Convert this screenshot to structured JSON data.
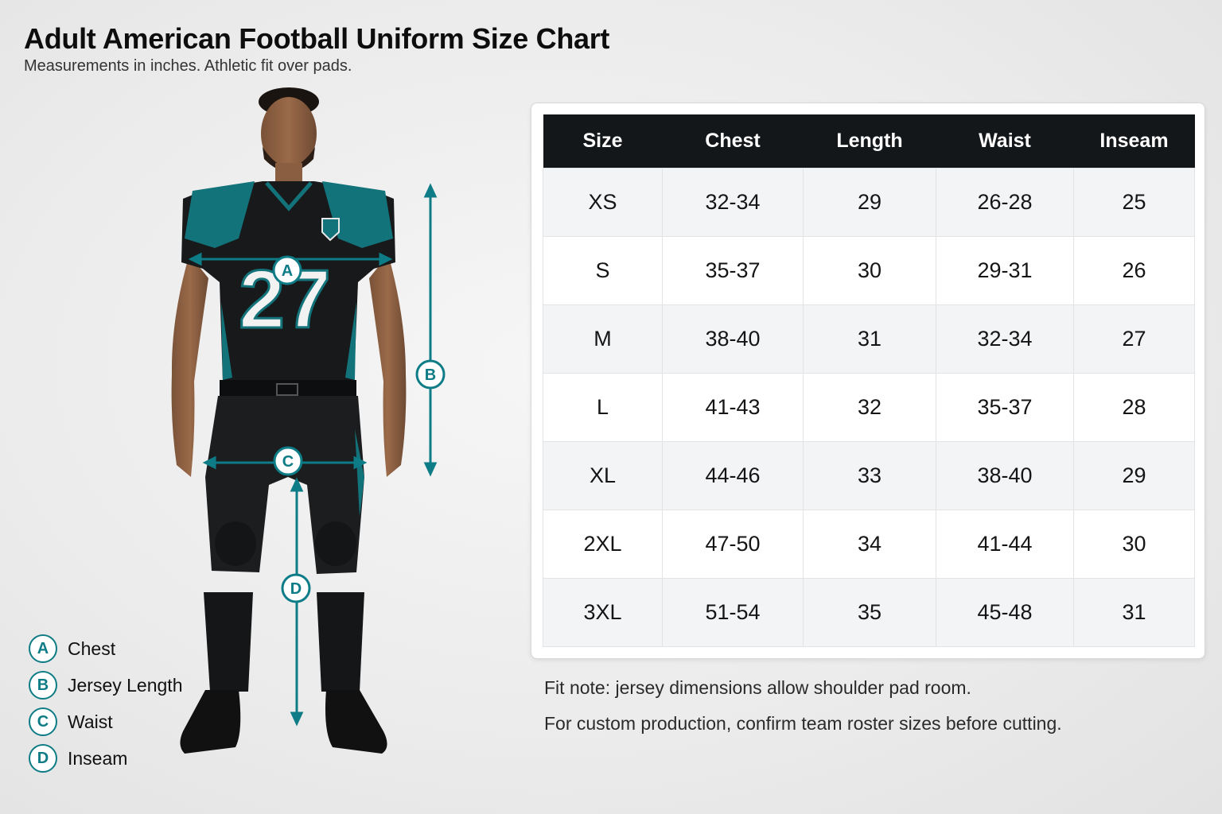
{
  "header": {
    "title": "Adult American Football Uniform Size Chart",
    "subtitle": "Measurements in inches. Athletic fit over pads."
  },
  "figure": {
    "jersey_number": "27",
    "markers": {
      "a": "A",
      "b": "B",
      "c": "C",
      "d": "D"
    },
    "colors": {
      "accent": "#0e7c86",
      "teal_panel": "#13737a",
      "uniform": "#17191b"
    },
    "icons": [
      "shield-logo-icon"
    ]
  },
  "legend": {
    "items": [
      {
        "key": "A",
        "label": "Chest"
      },
      {
        "key": "B",
        "label": "Jersey Length"
      },
      {
        "key": "C",
        "label": "Waist"
      },
      {
        "key": "D",
        "label": "Inseam"
      }
    ]
  },
  "table": {
    "headers": [
      "Size",
      "Chest",
      "Length",
      "Waist",
      "Inseam"
    ],
    "rows": [
      [
        "XS",
        "32-34",
        "29",
        "26-28",
        "25"
      ],
      [
        "S",
        "35-37",
        "30",
        "29-31",
        "26"
      ],
      [
        "M",
        "38-40",
        "31",
        "32-34",
        "27"
      ],
      [
        "L",
        "41-43",
        "32",
        "35-37",
        "28"
      ],
      [
        "XL",
        "44-46",
        "33",
        "38-40",
        "29"
      ],
      [
        "2XL",
        "47-50",
        "34",
        "41-44",
        "30"
      ],
      [
        "3XL",
        "51-54",
        "35",
        "45-48",
        "31"
      ]
    ]
  },
  "notes": {
    "fit": "Fit note: jersey dimensions allow shoulder pad room.",
    "production": "For custom production, confirm team roster sizes before cutting."
  }
}
